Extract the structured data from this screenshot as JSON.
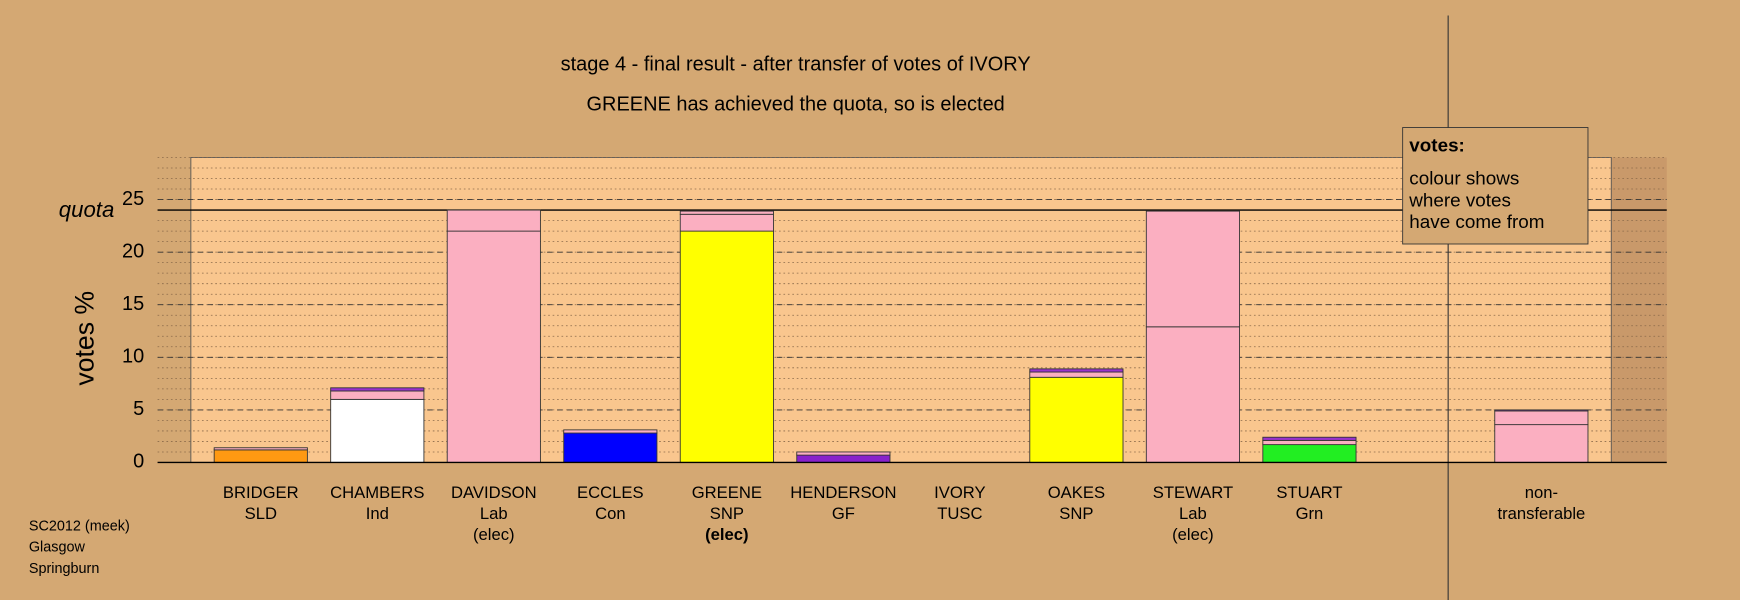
{
  "chart_data": {
    "type": "stacked-bar",
    "title": "stage 4 - final result - after transfer of votes of IVORY",
    "subtitle": "GREENE has achieved the quota, so is elected",
    "y_label": "votes %",
    "ylim": [
      0,
      29
    ],
    "yticks": [
      0,
      5,
      10,
      15,
      20,
      25
    ],
    "minor_step": 1,
    "grid": true,
    "quota": {
      "label": "quota",
      "value": 24
    },
    "legend": {
      "title": "votes:",
      "lines": [
        "colour shows",
        "where votes",
        "have come from"
      ]
    },
    "bars": [
      {
        "lines": [
          "BRIDGER",
          "SLD"
        ],
        "segments": [
          {
            "color": "#ff9912",
            "value": 1.2
          },
          {
            "color": "#fbafc1",
            "value": 0.2
          }
        ]
      },
      {
        "lines": [
          "CHAMBERS",
          "Ind"
        ],
        "segments": [
          {
            "color": "#ffffff",
            "value": 6.0
          },
          {
            "color": "#fbafc1",
            "value": 0.8
          },
          {
            "color": "#9933cc",
            "value": 0.3
          }
        ]
      },
      {
        "lines": [
          "DAVIDSON",
          "Lab",
          "(elec)"
        ],
        "segments": [
          {
            "color": "#fbafc1",
            "value": 22.0
          },
          {
            "color": "#fbafc1",
            "value": 2.0
          }
        ]
      },
      {
        "lines": [
          "ECCLES",
          "Con"
        ],
        "segments": [
          {
            "color": "#0000ff",
            "value": 2.8
          },
          {
            "color": "#fbafc1",
            "value": 0.3
          }
        ]
      },
      {
        "lines": [
          "GREENE",
          "SNP",
          {
            "text": "(elec)",
            "bold": true
          }
        ],
        "segments": [
          {
            "color": "#ffff00",
            "value": 22.0
          },
          {
            "color": "#fbafc1",
            "value": 1.6
          },
          {
            "color": "#fbafc1",
            "value": 0.3
          }
        ]
      },
      {
        "lines": [
          "HENDERSON",
          "GF"
        ],
        "segments": [
          {
            "color": "#8822cc",
            "value": 0.7
          },
          {
            "color": "#fbafc1",
            "value": 0.3
          }
        ]
      },
      {
        "lines": [
          "IVORY",
          "TUSC"
        ],
        "segments": []
      },
      {
        "lines": [
          "OAKES",
          "SNP"
        ],
        "segments": [
          {
            "color": "#ffff00",
            "value": 8.1
          },
          {
            "color": "#fbafc1",
            "value": 0.5
          },
          {
            "color": "#9933cc",
            "value": 0.3
          }
        ]
      },
      {
        "lines": [
          "STEWART",
          "Lab",
          "(elec)"
        ],
        "segments": [
          {
            "color": "#fbafc1",
            "value": 12.9
          },
          {
            "color": "#fbafc1",
            "value": 11.0
          }
        ]
      },
      {
        "lines": [
          "STUART",
          "Grn"
        ],
        "segments": [
          {
            "color": "#22ee22",
            "value": 1.7
          },
          {
            "color": "#fbafc1",
            "value": 0.4
          },
          {
            "color": "#9933cc",
            "value": 0.3
          }
        ]
      },
      {
        "lines": [
          "non-",
          "transferable"
        ],
        "segments": [
          {
            "color": "#fbafc1",
            "value": 3.6
          },
          {
            "color": "#fbafc1",
            "value": 1.3
          },
          {
            "color": "#9933cc",
            "value": 0.1
          }
        ]
      }
    ]
  },
  "footer": [
    "SC2012 (meek)",
    "Glasgow",
    "Springburn"
  ]
}
